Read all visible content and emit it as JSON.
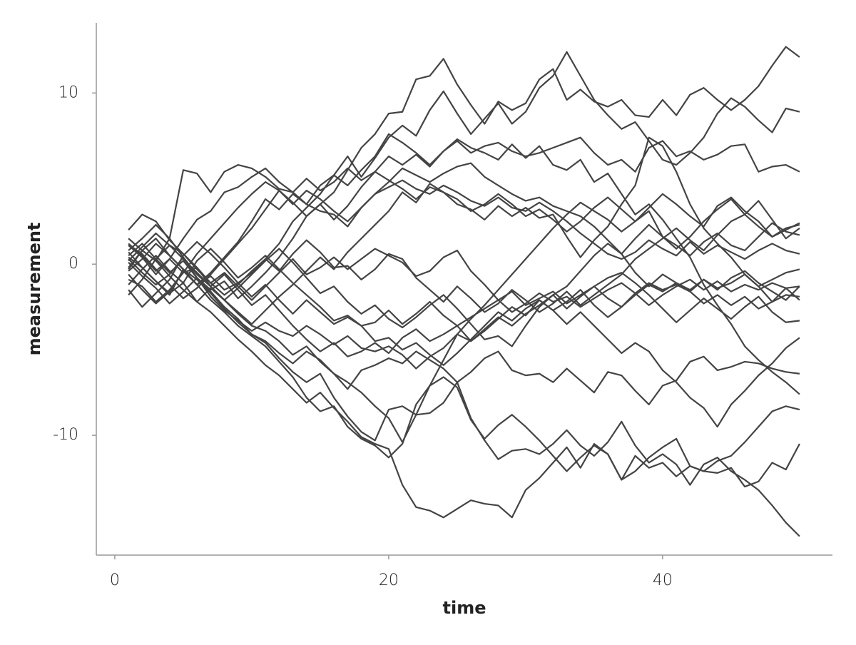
{
  "chart_data": {
    "type": "line",
    "x_label": "time",
    "y_label": "measurement",
    "x": [
      1,
      2,
      3,
      4,
      5,
      6,
      7,
      8,
      9,
      10,
      11,
      12,
      13,
      14,
      15,
      16,
      17,
      18,
      19,
      20,
      21,
      22,
      23,
      24,
      25,
      26,
      27,
      28,
      29,
      30,
      31,
      32,
      33,
      34,
      35,
      36,
      37,
      38,
      39,
      40,
      41,
      42,
      43,
      44,
      45,
      46,
      47,
      48,
      49,
      50
    ],
    "xlim": [
      -1.35,
      52.4
    ],
    "xticks": [
      0,
      20,
      40
    ],
    "ylim": [
      -17.0,
      14.1
    ],
    "yticks": [
      -10,
      0,
      10
    ],
    "grid": false,
    "series": [
      {
        "color": "#444444",
        "values": [
          0.5,
          1.2,
          0.3,
          -0.5,
          0.2,
          -0.8,
          -1.5,
          -1,
          -2,
          -1.3,
          -0.5,
          0.4,
          1.5,
          2.8,
          3.5,
          4.2,
          5.5,
          6.8,
          7.6,
          8.8,
          8.9,
          10.8,
          11,
          12,
          10.5,
          9.3,
          8.2,
          9.5,
          9,
          9.4,
          10.8,
          11.4,
          9.6,
          10.2,
          9.5,
          9.2,
          9.6,
          8.7,
          8.6,
          9.6,
          8.7,
          9.9,
          10.3,
          9.6,
          9,
          9.6,
          10.4,
          11.6,
          12.7,
          12.1
        ]
      },
      {
        "color": "#444444",
        "values": [
          -0.2,
          0.8,
          1.5,
          0.5,
          -0.3,
          -1.2,
          -0.5,
          0.4,
          1.3,
          2.5,
          3.8,
          3.2,
          4.1,
          3.5,
          4.6,
          5.2,
          6.3,
          5.1,
          6.2,
          7.4,
          8.1,
          7.5,
          9,
          10.1,
          8.8,
          7.6,
          8.5,
          9.4,
          8.2,
          8.9,
          10.3,
          11,
          12.4,
          11,
          9.6,
          8.7,
          7.9,
          8.3,
          7.2,
          6.1,
          5.8,
          6.5,
          7.4,
          8.8,
          9.7,
          9.2,
          8.4,
          7.7,
          9.1,
          8.9
        ]
      },
      {
        "color": "#444444",
        "values": [
          1.1,
          0.4,
          -0.6,
          0.3,
          1.5,
          2.6,
          3.1,
          4.2,
          4.5,
          5.1,
          5.6,
          4.8,
          4.2,
          5,
          4.3,
          4.8,
          5.6,
          4.9,
          5.4,
          6.3,
          5.8,
          6.4,
          5.7,
          6.6,
          7.2,
          6.5,
          6.9,
          7.1,
          6.6,
          6.3,
          6.5,
          6.8,
          7.1,
          7.4,
          6.5,
          5.8,
          6.1,
          5.4,
          6.8,
          7.2,
          6.3,
          6.6,
          6.1,
          6.4,
          6.9,
          7,
          5.4,
          5.7,
          5.8,
          5.4
        ]
      },
      {
        "color": "#444444",
        "values": [
          -1.2,
          -0.3,
          0.5,
          -0.4,
          -1.1,
          -2.2,
          -2.8,
          -3.6,
          -4.4,
          -5.1,
          -5.9,
          -6.5,
          -7.3,
          -8.1,
          -7.5,
          -8.4,
          -9.2,
          -10.1,
          -10.5,
          -10.8,
          -12.9,
          -14.2,
          -14.4,
          -14.8,
          -14.3,
          -13.8,
          -14,
          -14.1,
          -14.8,
          -13.2,
          -12.5,
          -11.6,
          -10.7,
          -11.9,
          -10.5,
          -11.1,
          -12.6,
          -11.2,
          -11.9,
          -11.6,
          -12.4,
          -11.8,
          -12.1,
          -12.2,
          -11.9,
          -13,
          -12.7,
          -11.6,
          -12,
          -10.5
        ]
      },
      {
        "color": "#444444",
        "values": [
          0.3,
          -0.5,
          -1.2,
          -0.6,
          0.4,
          -0.8,
          -1.6,
          -2.5,
          -3.2,
          -4.1,
          -4.6,
          -5.5,
          -6.3,
          -6.9,
          -6.4,
          -7.8,
          -8.9,
          -9.8,
          -10.3,
          -8.5,
          -8.3,
          -8.8,
          -8.7,
          -8.1,
          -6.9,
          -9,
          -10.3,
          -11.4,
          -10.9,
          -10.8,
          -11.1,
          -10.5,
          -9.7,
          -10.6,
          -11.2,
          -10.4,
          -9.2,
          -10.6,
          -11.6,
          -11.1,
          -11.7,
          -12.9,
          -11.7,
          -11.3,
          -12.1,
          -12.6,
          -13.2,
          -14.1,
          -15.1,
          -15.9
        ]
      },
      {
        "color": "#444444",
        "values": [
          -0.6,
          -1.5,
          -2.3,
          -1.6,
          -0.4,
          -1.2,
          -2.1,
          -2.8,
          -3.6,
          -4.2,
          -4.8,
          -5.7,
          -6.6,
          -7.8,
          -8.6,
          -8.3,
          -9.5,
          -10.2,
          -10.6,
          -11.3,
          -10.5,
          -8.2,
          -7.1,
          -6.6,
          -7.2,
          -9.1,
          -10.2,
          -9.4,
          -8.8,
          -9.5,
          -10.3,
          -11.2,
          -12.1,
          -11.3,
          -10.6,
          -11.1,
          -12.6,
          -12.1,
          -11.3,
          -10.7,
          -10.2,
          -11.8,
          -12.1,
          -11.5,
          -11.2,
          -10.4,
          -9.5,
          -8.6,
          -8.3,
          -8.5
        ]
      },
      {
        "color": "#444444",
        "values": [
          1.5,
          0.8,
          0.2,
          -0.7,
          -1.5,
          -2.2,
          -1.4,
          -2.1,
          -2.9,
          -3.6,
          -3.9,
          -4.5,
          -5.3,
          -4.8,
          -5.7,
          -6.4,
          -7.3,
          -6.2,
          -5.9,
          -5.5,
          -5.8,
          -5.1,
          -5.6,
          -6.1,
          -6.9,
          -6.3,
          -5.5,
          -5.1,
          -6.2,
          -6.5,
          -6.4,
          -6.9,
          -6.1,
          -6.8,
          -7.5,
          -6.3,
          -6.5,
          -7.4,
          -8.2,
          -7.1,
          -6.8,
          -5.7,
          -5.4,
          -6.2,
          -6,
          -5.7,
          -5.8,
          -6.1,
          -6.3,
          -6.4
        ]
      },
      {
        "color": "#444444",
        "values": [
          -0.9,
          -1.3,
          -2.2,
          -1.5,
          -0.5,
          -0.2,
          -1.1,
          -1.8,
          -1.2,
          -0.4,
          0.3,
          1.2,
          2.5,
          3.3,
          4.1,
          5.2,
          4.6,
          5.5,
          6.3,
          7.6,
          7.1,
          6.5,
          5.8,
          6.6,
          7.3,
          6.8,
          6.5,
          6.1,
          7,
          6.2,
          6.9,
          5.8,
          5.5,
          6.1,
          4.8,
          5.3,
          4.1,
          2.9,
          3.5,
          2.6,
          1.5,
          0.4,
          -1.2,
          -2.4,
          -3.5,
          -4.8,
          -5.6,
          -6.3,
          -6.9,
          -7.6
        ]
      },
      {
        "color": "#444444",
        "values": [
          0.2,
          1,
          1.8,
          1.1,
          0.3,
          -0.5,
          -1.3,
          -0.6,
          -1.5,
          -2.4,
          -1.8,
          -2.7,
          -3.6,
          -4.4,
          -5.1,
          -4.6,
          -5.4,
          -5.1,
          -4.6,
          -5.2,
          -4.3,
          -3.8,
          -4.5,
          -4.1,
          -3.6,
          -4.5,
          -3.9,
          -3.2,
          -2.5,
          -3,
          -2.1,
          -2.7,
          -3.5,
          -2.8,
          -3.6,
          -4.4,
          -5.2,
          -4.6,
          -5.1,
          -6.2,
          -6.9,
          -7.8,
          -8.4,
          -9.5,
          -8.2,
          -7.4,
          -6.5,
          -5.8,
          -4.9,
          -4.3
        ]
      },
      {
        "color": "#444444",
        "values": [
          -1.5,
          -2.5,
          -1.7,
          -0.9,
          0.5,
          1.3,
          0.6,
          -0.2,
          -1.1,
          -0.5,
          0.3,
          -0.4,
          0.6,
          1.4,
          0.7,
          -0.2,
          -0.1,
          -0.9,
          -0.3,
          0.6,
          0.3,
          -0.8,
          -1.5,
          -2.2,
          -1.3,
          -2,
          -2.8,
          -2.3,
          -1.5,
          -2.1,
          -2.8,
          -2.3,
          -1.6,
          -2.4,
          -1.8,
          -1.2,
          -0.6,
          0.3,
          0.9,
          1.5,
          2.1,
          1.4,
          0.8,
          1.7,
          2.5,
          2.9,
          2.2,
          1.6,
          2.1,
          2.3
        ]
      },
      {
        "color": "#444444",
        "values": [
          0.8,
          1.5,
          2.3,
          1.5,
          0.4,
          -0.6,
          -1.3,
          -2.1,
          -2.8,
          -3.5,
          -2.7,
          -1.9,
          -1.2,
          -0.4,
          0.4,
          -0.3,
          0.7,
          1.5,
          2.3,
          3.1,
          4.2,
          3.6,
          4.7,
          4.2,
          3.8,
          3.1,
          3.5,
          4.1,
          3.5,
          2.8,
          3.2,
          2.6,
          1.9,
          2.5,
          3.3,
          3.9,
          3.2,
          2.5,
          3.1,
          1.6,
          0.9,
          1.6,
          2.5,
          3.2,
          3.8,
          2.9,
          3.7,
          2.6,
          1.5,
          2.1
        ]
      },
      {
        "color": "#444444",
        "values": [
          0.1,
          -0.7,
          -1.4,
          -2.3,
          -1.6,
          -0.8,
          -1.9,
          -2.7,
          -3.3,
          -3.9,
          -3.4,
          -3.9,
          -4.2,
          -3.6,
          -4.1,
          -4.7,
          -4.2,
          -4.9,
          -5.1,
          -4.8,
          -5.3,
          -6.1,
          -5.4,
          -4.9,
          -4.1,
          -4.5,
          -3.8,
          -3.1,
          -3.6,
          -2.9,
          -2.4,
          -1.8,
          -1.3,
          -0.4,
          0.5,
          1.2,
          0.6,
          1.5,
          2.3,
          1.6,
          1.1,
          0.5,
          1.3,
          1.8,
          1.1,
          0.8,
          1.6,
          2.4,
          1.9,
          1.7
        ]
      },
      {
        "color": "#444444",
        "values": [
          1.2,
          0.5,
          -0.4,
          0.3,
          -0.5,
          0.6,
          1.5,
          2.4,
          3.3,
          4.1,
          4.8,
          4.3,
          3.5,
          4.3,
          3.8,
          3.1,
          2.5,
          3.3,
          4.1,
          4.5,
          4.9,
          4.4,
          4.1,
          4.6,
          4.2,
          3.7,
          3.4,
          3.9,
          3.3,
          3.1,
          3.6,
          3.1,
          2.5,
          1.8,
          1.2,
          0.6,
          0.3,
          0.7,
          1.4,
          0.9,
          0.5,
          1.3,
          0.6,
          1.1,
          0.7,
          0.3,
          0.8,
          1.2,
          0.8,
          0.6
        ]
      },
      {
        "color": "#444444",
        "values": [
          -0.4,
          0.3,
          1.2,
          0.5,
          -0.3,
          -1.2,
          -0.7,
          -1.5,
          -1.1,
          -1.9,
          -1.2,
          -2.1,
          -2.9,
          -2.1,
          -2.8,
          -3.5,
          -3.1,
          -3.6,
          -4.5,
          -4.3,
          -5,
          -4.6,
          -5.3,
          -5.9,
          -5.2,
          -4.4,
          -3.6,
          -2.8,
          -3.3,
          -2.6,
          -2.1,
          -2.7,
          -2.2,
          -1.5,
          -2.4,
          -3.1,
          -2.5,
          -1.8,
          -1.2,
          -1.6,
          -1.1,
          -1.5,
          -0.9,
          -1.4,
          -1.1,
          -0.6,
          -1.3,
          -0.9,
          -0.5,
          -0.3
        ]
      },
      {
        "color": "#444444",
        "values": [
          0.7,
          -0.2,
          -1,
          -1.7,
          -1.1,
          0.2,
          0.9,
          0.1,
          -0.8,
          -0.2,
          0.5,
          -0.3,
          -1.1,
          -1.8,
          -2.5,
          -3.3,
          -3,
          -3.6,
          -3.4,
          -2.7,
          -3.5,
          -2.9,
          -2.2,
          -3,
          -3.6,
          -3.1,
          -2.6,
          -2.1,
          -2.8,
          -2.3,
          -1.7,
          -2.2,
          -1.9,
          -2.5,
          -2,
          -1.5,
          -1.1,
          -1.7,
          -2.4,
          -1.8,
          -1.3,
          -0.9,
          -1.5,
          -1,
          -1.6,
          -1.2,
          -1.5,
          -1.1,
          -1.4,
          -1.3
        ]
      },
      {
        "color": "#444444",
        "values": [
          2,
          2.9,
          2.5,
          1.4,
          0.6,
          -0.3,
          -1.1,
          -0.5,
          -1.3,
          -2.1,
          -1.3,
          -0.5,
          0.3,
          -0.6,
          -0.2,
          0.4,
          -0.3,
          0.3,
          0.9,
          0.5,
          0.1,
          -0.7,
          -0.4,
          0.4,
          0.8,
          -0.4,
          -1.2,
          -2.1,
          -1.6,
          -2.4,
          -2,
          -1.6,
          -2.3,
          -1.8,
          -1.3,
          -2,
          -2.5,
          -1.7,
          -1.1,
          -1.5,
          -1.2,
          -1.6,
          -2.3,
          -1.8,
          -2.4,
          -1.9,
          -2.6,
          -2.2,
          -1.8,
          -1.9
        ]
      },
      {
        "color": "#444444",
        "values": [
          -1.8,
          -0.9,
          0.3,
          1.1,
          0.6,
          -0.2,
          -1.3,
          -2.1,
          -1.4,
          -0.6,
          0.2,
          0.9,
          0.1,
          -0.8,
          -1.7,
          -1.3,
          -2.2,
          -2.9,
          -2.4,
          -3.2,
          -3.7,
          -3.1,
          -2.4,
          -1.8,
          -2.6,
          -3.5,
          -4.4,
          -4.2,
          -4.8,
          -3.6,
          -2.5,
          -1.8,
          -2.6,
          -1.9,
          -1.3,
          -0.8,
          -0.5,
          -1.1,
          -1.8,
          -2.6,
          -3.4,
          -2.7,
          -2,
          -2.6,
          -3.2,
          -2.5,
          -1.9,
          -2.8,
          -3.4,
          -3.3
        ]
      },
      {
        "color": "#444444",
        "values": [
          1.1,
          0.6,
          -0.3,
          -1.2,
          -2,
          -1.4,
          -0.6,
          0.3,
          1.2,
          2.1,
          3.2,
          4.3,
          3.6,
          2.8,
          3.5,
          2.6,
          3.4,
          4.5,
          5.4,
          4.9,
          4.4,
          3.8,
          4.5,
          4.2,
          3.5,
          3.2,
          2.6,
          3.4,
          2.8,
          3.3,
          2.7,
          2.9,
          1.6,
          0.4,
          1.4,
          2.2,
          3.5,
          4.6,
          7.4,
          6.9,
          5.4,
          3.5,
          2.1,
          1.2,
          0.4,
          -0.6,
          -1.3,
          -2.2,
          -1.4,
          -2.1
        ]
      },
      {
        "color": "#444444",
        "values": [
          -0.3,
          0.8,
          0.2,
          1.5,
          5.5,
          5.3,
          4.2,
          5.4,
          5.8,
          5.6,
          5.1,
          4.4,
          4.2,
          3.5,
          3.1,
          2.9,
          2.2,
          3.3,
          4.1,
          4.8,
          5.6,
          5.2,
          4.8,
          5.3,
          5.7,
          5.9,
          5.1,
          4.6,
          4.1,
          3.7,
          3.9,
          3.4,
          3.1,
          2.8,
          2.2,
          1.4,
          0.6,
          -0.5,
          -1.3,
          -0.6,
          -1.1,
          -1.6,
          -0.9,
          -1.5,
          -0.8,
          -0.4,
          -1.1,
          -1.6,
          -2.1,
          -1.3
        ]
      },
      {
        "color": "#444444",
        "values": [
          0.4,
          -0.2,
          -1,
          -1.8,
          -0.3,
          -0.9,
          -1.7,
          -2.6,
          -3.4,
          -4.1,
          -4.5,
          -5.2,
          -5.8,
          -5.1,
          -5.6,
          -6.4,
          -6.9,
          -7.5,
          -8.3,
          -9,
          -10.4,
          -8.8,
          -7.1,
          -5.6,
          -4.1,
          -3.2,
          -2.4,
          -1.5,
          -0.6,
          0.3,
          1.2,
          2.1,
          2.9,
          3.6,
          3.1,
          2.6,
          1.9,
          2.5,
          3.3,
          4.1,
          3.5,
          2.8,
          2.2,
          3.4,
          3.9,
          3.1,
          2.5,
          1.6,
          2,
          2.4
        ]
      }
    ]
  }
}
